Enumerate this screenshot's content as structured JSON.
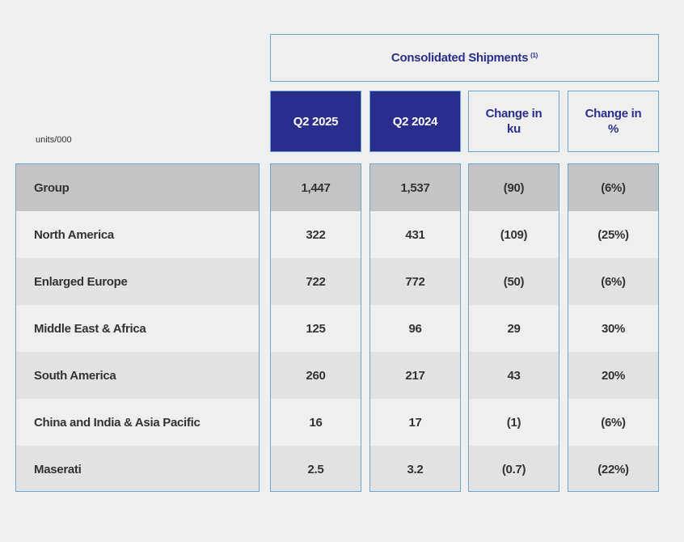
{
  "table": {
    "title": "Consolidated Shipments",
    "title_note": "(1)",
    "units": "units/000",
    "columns": [
      "Q2 2025",
      "Q2 2024",
      "Change in ku",
      "Change in %"
    ],
    "column_lines": [
      [
        "Q2 2025"
      ],
      [
        "Q2 2024"
      ],
      [
        "Change in",
        "ku"
      ],
      [
        "Change in",
        "%"
      ]
    ],
    "rows": [
      {
        "label": "Group",
        "values": [
          "1,447",
          "1,537",
          "(90)",
          "(6%)"
        ]
      },
      {
        "label": "North America",
        "values": [
          "322",
          "431",
          "(109)",
          "(25%)"
        ]
      },
      {
        "label": "Enlarged Europe",
        "values": [
          "722",
          "772",
          "(50)",
          "(6%)"
        ]
      },
      {
        "label": "Middle East & Africa",
        "values": [
          "125",
          "96",
          "29",
          "30%"
        ]
      },
      {
        "label": "South America",
        "values": [
          "260",
          "217",
          "43",
          "20%"
        ]
      },
      {
        "label": "China and India & Asia Pacific",
        "values": [
          "16",
          "17",
          "(1)",
          "(6%)"
        ]
      },
      {
        "label": "Maserati",
        "values": [
          "2.5",
          "3.2",
          "(0.7)",
          "(22%)"
        ]
      }
    ]
  },
  "colors": {
    "accent_dark": "#2b2d8c",
    "accent_text": "#2b2f8e",
    "border": "#6fa6d0",
    "group_row": "#c4c4c4",
    "row_alt": "#e2e2e2",
    "background": "#efefef"
  }
}
